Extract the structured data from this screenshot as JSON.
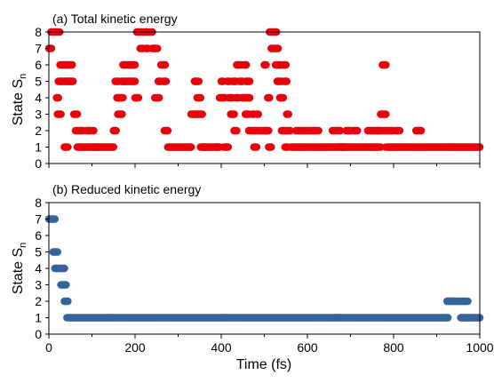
{
  "chart_data": [
    {
      "type": "scatter",
      "title": "(a) Total kinetic energy",
      "ylabel_main": "State S",
      "ylabel_sub": "n",
      "xlim": [
        0,
        1000
      ],
      "ylim": [
        0,
        8
      ],
      "yticks": [
        0,
        1,
        2,
        3,
        4,
        5,
        6,
        7,
        8
      ],
      "xticks": [
        0,
        200,
        400,
        600,
        800,
        1000
      ],
      "color": "#e8000b",
      "segments": [
        [
          0,
          6,
          7
        ],
        [
          5,
          25,
          8
        ],
        [
          18,
          22,
          4
        ],
        [
          20,
          28,
          3
        ],
        [
          22,
          30,
          5
        ],
        [
          26,
          46,
          6
        ],
        [
          30,
          48,
          5
        ],
        [
          36,
          44,
          1
        ],
        [
          44,
          56,
          5
        ],
        [
          46,
          54,
          6
        ],
        [
          58,
          66,
          3
        ],
        [
          62,
          68,
          2
        ],
        [
          66,
          72,
          1
        ],
        [
          70,
          80,
          2
        ],
        [
          76,
          106,
          1
        ],
        [
          88,
          96,
          2
        ],
        [
          104,
          112,
          1
        ],
        [
          100,
          104,
          2
        ],
        [
          110,
          150,
          1
        ],
        [
          150,
          156,
          2
        ],
        [
          154,
          162,
          5
        ],
        [
          158,
          164,
          4
        ],
        [
          160,
          170,
          3
        ],
        [
          164,
          172,
          4
        ],
        [
          168,
          178,
          5
        ],
        [
          172,
          196,
          6
        ],
        [
          176,
          190,
          5
        ],
        [
          190,
          200,
          5
        ],
        [
          196,
          200,
          6
        ],
        [
          200,
          208,
          4
        ],
        [
          204,
          228,
          8
        ],
        [
          212,
          218,
          7
        ],
        [
          226,
          230,
          7
        ],
        [
          230,
          240,
          8
        ],
        [
          240,
          252,
          7
        ],
        [
          246,
          256,
          4
        ],
        [
          254,
          260,
          5
        ],
        [
          260,
          270,
          6
        ],
        [
          266,
          272,
          5
        ],
        [
          268,
          276,
          2
        ],
        [
          276,
          330,
          1
        ],
        [
          330,
          346,
          3
        ],
        [
          338,
          348,
          5
        ],
        [
          344,
          352,
          4
        ],
        [
          348,
          356,
          3
        ],
        [
          352,
          362,
          1
        ],
        [
          360,
          390,
          1
        ],
        [
          388,
          396,
          1
        ],
        [
          396,
          408,
          4
        ],
        [
          400,
          404,
          5
        ],
        [
          406,
          416,
          1
        ],
        [
          414,
          420,
          5
        ],
        [
          418,
          426,
          4
        ],
        [
          422,
          430,
          3
        ],
        [
          426,
          434,
          5
        ],
        [
          430,
          436,
          2
        ],
        [
          434,
          440,
          4
        ],
        [
          436,
          446,
          6
        ],
        [
          442,
          450,
          5
        ],
        [
          448,
          462,
          4
        ],
        [
          452,
          458,
          6
        ],
        [
          456,
          464,
          3
        ],
        [
          458,
          466,
          5
        ],
        [
          462,
          466,
          4
        ],
        [
          464,
          482,
          2
        ],
        [
          472,
          476,
          3
        ],
        [
          476,
          482,
          1
        ],
        [
          482,
          486,
          3
        ],
        [
          486,
          496,
          2
        ],
        [
          498,
          506,
          2
        ],
        [
          500,
          504,
          6
        ],
        [
          504,
          510,
          2
        ],
        [
          508,
          512,
          4
        ],
        [
          510,
          516,
          1
        ],
        [
          512,
          518,
          8
        ],
        [
          516,
          532,
          7
        ],
        [
          522,
          528,
          8
        ],
        [
          526,
          532,
          6
        ],
        [
          530,
          540,
          5
        ],
        [
          534,
          538,
          6
        ],
        [
          536,
          544,
          4
        ],
        [
          540,
          552,
          2
        ],
        [
          544,
          550,
          6
        ],
        [
          546,
          552,
          5
        ],
        [
          548,
          554,
          1
        ],
        [
          552,
          556,
          3
        ],
        [
          556,
          560,
          2
        ],
        [
          562,
          582,
          1
        ],
        [
          574,
          594,
          2
        ],
        [
          582,
          600,
          1
        ],
        [
          598,
          626,
          2
        ],
        [
          604,
          650,
          1
        ],
        [
          650,
          688,
          1
        ],
        [
          658,
          676,
          2
        ],
        [
          676,
          694,
          1
        ],
        [
          690,
          702,
          2
        ],
        [
          696,
          736,
          1
        ],
        [
          708,
          716,
          2
        ],
        [
          736,
          750,
          1
        ],
        [
          740,
          764,
          2
        ],
        [
          750,
          770,
          1
        ],
        [
          762,
          776,
          2
        ],
        [
          770,
          774,
          3
        ],
        [
          774,
          782,
          6
        ],
        [
          776,
          782,
          3
        ],
        [
          780,
          800,
          2
        ],
        [
          782,
          790,
          1
        ],
        [
          790,
          822,
          1
        ],
        [
          806,
          814,
          2
        ],
        [
          822,
          840,
          1
        ],
        [
          840,
          880,
          1
        ],
        [
          852,
          864,
          2
        ],
        [
          880,
          900,
          1
        ],
        [
          900,
          940,
          1
        ],
        [
          940,
          1000,
          1
        ]
      ]
    },
    {
      "type": "scatter",
      "title": "(b) Reduced kinetic energy",
      "ylabel_main": "State S",
      "ylabel_sub": "n",
      "xlabel": "Time (fs)",
      "xlim": [
        0,
        1000
      ],
      "ylim": [
        0,
        8
      ],
      "yticks": [
        0,
        1,
        2,
        3,
        4,
        5,
        6,
        7,
        8
      ],
      "xticks": [
        0,
        200,
        400,
        600,
        800,
        1000
      ],
      "xticklabels": [
        "0",
        "200",
        "400",
        "600",
        "800",
        "1000"
      ],
      "color": "#34649b",
      "segments": [
        [
          0,
          14,
          7
        ],
        [
          10,
          20,
          5
        ],
        [
          14,
          36,
          4
        ],
        [
          28,
          40,
          3
        ],
        [
          36,
          44,
          2
        ],
        [
          42,
          926,
          1
        ],
        [
          924,
          972,
          2
        ],
        [
          956,
          964,
          1
        ],
        [
          964,
          1000,
          1
        ]
      ]
    }
  ]
}
